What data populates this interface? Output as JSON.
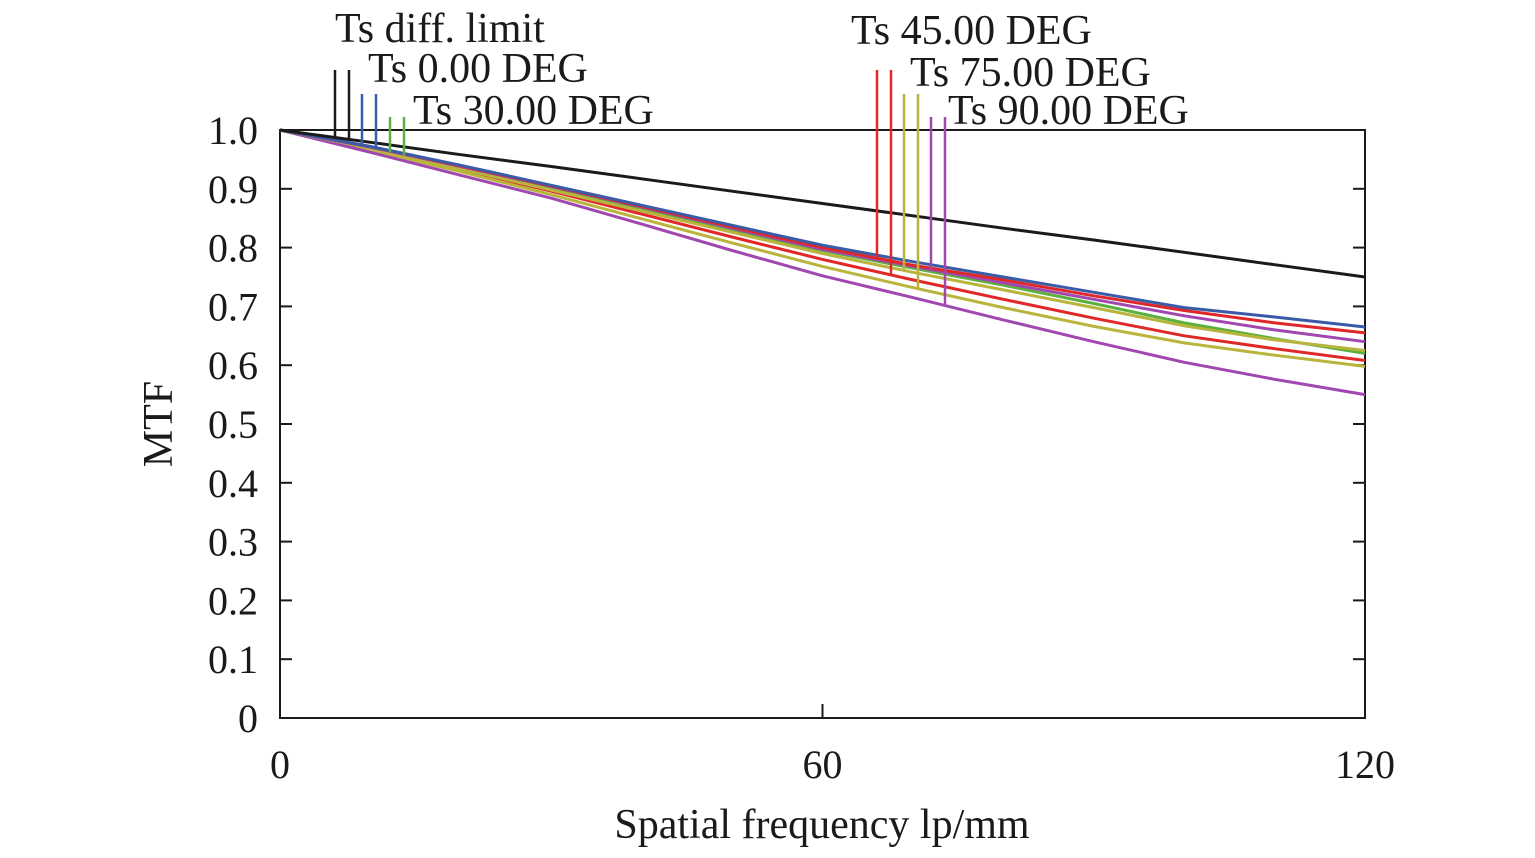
{
  "chart_data": {
    "type": "line",
    "title": "",
    "xlabel": "Spatial frequency lp/mm",
    "ylabel": "MTF",
    "xlim": [
      0,
      120
    ],
    "ylim": [
      0,
      1.0
    ],
    "x_ticks": [
      0,
      60,
      120
    ],
    "x_tick_labels": [
      "0",
      "60",
      "120"
    ],
    "y_ticks": [
      0,
      0.1,
      0.2,
      0.3,
      0.4,
      0.5,
      0.6,
      0.7,
      0.8,
      0.9,
      1.0
    ],
    "y_tick_labels": [
      "0",
      "0.1",
      "0.2",
      "0.3",
      "0.4",
      "0.5",
      "0.6",
      "0.7",
      "0.8",
      "0.9",
      "1.0"
    ],
    "grid": false,
    "legend_position": "top",
    "series": [
      {
        "name": "Ts diff. limit",
        "color": "#1a1a1a",
        "x": [
          0,
          10,
          20,
          30,
          40,
          50,
          60,
          70,
          80,
          90,
          100,
          110,
          120
        ],
        "y": [
          1.0,
          0.979,
          0.958,
          0.938,
          0.917,
          0.896,
          0.875,
          0.854,
          0.833,
          0.813,
          0.792,
          0.771,
          0.75
        ]
      },
      {
        "name": "Ts 0.00 DEG",
        "color": "#3a5ba8",
        "x": [
          0,
          10,
          20,
          30,
          40,
          50,
          60,
          70,
          80,
          90,
          100,
          110,
          120
        ],
        "y": [
          1.0,
          0.972,
          0.94,
          0.906,
          0.872,
          0.838,
          0.804,
          0.776,
          0.75,
          0.724,
          0.698,
          0.682,
          0.665
        ]
      },
      {
        "name": "Ts 30.00 DEG",
        "color": "#5cb040",
        "x": [
          0,
          10,
          20,
          30,
          40,
          50,
          60,
          70,
          80,
          90,
          100,
          110,
          120
        ],
        "y": [
          1.0,
          0.97,
          0.936,
          0.901,
          0.865,
          0.83,
          0.795,
          0.765,
          0.736,
          0.705,
          0.672,
          0.645,
          0.62
        ]
      },
      {
        "name": "Ts 45.00 DEG",
        "color": "#e02828",
        "x": [
          0,
          10,
          20,
          30,
          40,
          50,
          60,
          70,
          80,
          90,
          100,
          110,
          120
        ],
        "y": [
          1.0,
          0.972,
          0.939,
          0.905,
          0.87,
          0.835,
          0.8,
          0.77,
          0.745,
          0.718,
          0.693,
          0.672,
          0.655
        ]
      },
      {
        "name": "Ts 75.00 DEG",
        "color": "#b8b43c",
        "x": [
          0,
          10,
          20,
          30,
          40,
          50,
          60,
          70,
          80,
          90,
          100,
          110,
          120
        ],
        "y": [
          1.0,
          0.969,
          0.934,
          0.898,
          0.862,
          0.826,
          0.79,
          0.758,
          0.728,
          0.698,
          0.667,
          0.643,
          0.625
        ]
      },
      {
        "name": "Ts 90.00 DEG",
        "color": "#a048b0",
        "x": [
          0,
          10,
          20,
          30,
          40,
          50,
          60,
          70,
          80,
          90,
          100,
          110,
          120
        ],
        "y": [
          1.0,
          0.971,
          0.938,
          0.904,
          0.869,
          0.833,
          0.797,
          0.768,
          0.74,
          0.712,
          0.684,
          0.66,
          0.64
        ]
      },
      {
        "name": "Ts 45.00 DEG",
        "color": "#e02828",
        "x": [
          0,
          10,
          20,
          30,
          40,
          50,
          60,
          70,
          80,
          90,
          100,
          110,
          120
        ],
        "y": [
          1.0,
          0.968,
          0.933,
          0.896,
          0.857,
          0.818,
          0.78,
          0.745,
          0.712,
          0.68,
          0.65,
          0.628,
          0.608
        ]
      },
      {
        "name": "Ts 75.00 DEG",
        "color": "#b8b43c",
        "x": [
          0,
          10,
          20,
          30,
          40,
          50,
          60,
          70,
          80,
          90,
          100,
          110,
          120
        ],
        "y": [
          1.0,
          0.966,
          0.929,
          0.89,
          0.849,
          0.808,
          0.768,
          0.732,
          0.698,
          0.666,
          0.638,
          0.617,
          0.598
        ]
      },
      {
        "name": "Ts 90.00 DEG",
        "color": "#a048b0",
        "x": [
          0,
          10,
          20,
          30,
          40,
          50,
          60,
          70,
          80,
          90,
          100,
          110,
          120
        ],
        "y": [
          1.0,
          0.962,
          0.923,
          0.884,
          0.84,
          0.795,
          0.752,
          0.715,
          0.677,
          0.64,
          0.605,
          0.576,
          0.55
        ]
      }
    ],
    "legend_entries": [
      {
        "text": "Ts diff. limit",
        "color": "#1a1a1a",
        "pair": [
          0,
          0
        ]
      },
      {
        "text": "Ts 0.00 DEG",
        "color": "#3a5ba8",
        "pair": [
          1,
          1
        ]
      },
      {
        "text": "Ts 30.00 DEG",
        "color": "#5cb040",
        "pair": [
          2,
          2
        ]
      },
      {
        "text": "Ts 45.00 DEG",
        "color": "#e02828",
        "pair": [
          3,
          6
        ]
      },
      {
        "text": "Ts 75.00 DEG",
        "color": "#b8b43c",
        "pair": [
          4,
          7
        ]
      },
      {
        "text": "Ts 90.00 DEG",
        "color": "#a048b0",
        "pair": [
          5,
          8
        ]
      }
    ]
  }
}
